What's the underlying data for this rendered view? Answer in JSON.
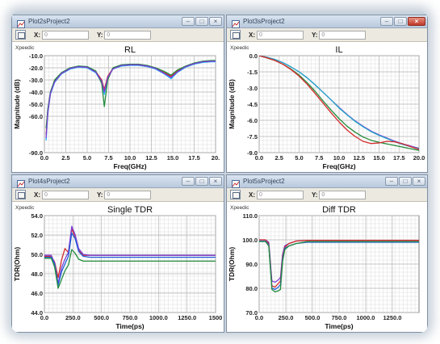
{
  "windows": [
    {
      "key": "rl",
      "title": "Plot2sProject2",
      "x_label": "X:",
      "x_value": "0",
      "y_label": "Y:",
      "y_value": "0",
      "brand": "Xpeedic",
      "active": false
    },
    {
      "key": "il",
      "title": "Plot3sProject2",
      "x_label": "X:",
      "x_value": "0",
      "y_label": "Y:",
      "y_value": "0",
      "brand": "Xpeedic",
      "active": true
    },
    {
      "key": "stdr",
      "title": "Plot4sProject2",
      "x_label": "X:",
      "x_value": "0",
      "y_label": "Y:",
      "y_value": "0",
      "brand": "Xpeedic",
      "active": false
    },
    {
      "key": "dtdr",
      "title": "Plot5sProject2",
      "x_label": "X:",
      "x_value": "0",
      "y_label": "Y:",
      "y_value": "0",
      "brand": "Xpeedic",
      "active": false
    }
  ],
  "chart_data": [
    {
      "type": "line",
      "title": "RL",
      "xlabel": "Freq(GHz)",
      "ylabel": "Magnitude (dB)",
      "xlim": [
        0,
        20
      ],
      "ylim": [
        -90,
        -10
      ],
      "xticks": [
        0,
        2.5,
        5,
        7.5,
        10,
        12.5,
        15,
        17.5,
        20
      ],
      "xtick_labels": [
        "0.0",
        "2.5",
        "5.0",
        "7.5",
        "10.0",
        "12.5",
        "15.0",
        "17.5",
        "20."
      ],
      "yticks": [
        -90,
        -60,
        -50,
        -40,
        -30,
        -20,
        -10
      ],
      "ytick_labels": [
        "-90.0",
        "-60.0",
        "-50.0",
        "-40.0",
        "-30.0",
        "-20.0",
        "-10.0"
      ],
      "grid": true,
      "series": [
        {
          "color": "#1fb5ff",
          "x": [
            0.2,
            0.4,
            0.7,
            1.2,
            2,
            3,
            4,
            5,
            6,
            6.7,
            7,
            7.4,
            8,
            9,
            10,
            11,
            12,
            13,
            14,
            14.8,
            15.5,
            16.5,
            17.5,
            18.5,
            19.5,
            20
          ],
          "y": [
            -80,
            -58,
            -42,
            -32,
            -25,
            -21,
            -19.5,
            -20,
            -24,
            -32,
            -42,
            -28,
            -21,
            -18.5,
            -18,
            -18,
            -19,
            -21,
            -25,
            -29,
            -24,
            -19.5,
            -17,
            -15.5,
            -15,
            -15
          ]
        },
        {
          "color": "#d42a2a",
          "x": [
            0.2,
            0.4,
            0.7,
            1.2,
            2,
            3,
            4,
            5,
            6,
            6.7,
            7,
            7.4,
            8,
            9,
            10,
            11,
            12,
            13,
            14,
            14.8,
            15.5,
            16.5,
            17.5,
            18.5,
            19.5,
            20
          ],
          "y": [
            -75,
            -56,
            -41,
            -31,
            -24.5,
            -20.5,
            -19,
            -19.5,
            -23,
            -30,
            -38,
            -27,
            -20.5,
            -18,
            -17.5,
            -17.5,
            -18.5,
            -20.5,
            -24,
            -27,
            -23,
            -19,
            -16.5,
            -15,
            -14.5,
            -14.5
          ]
        },
        {
          "color": "#228b3c",
          "x": [
            0.2,
            0.4,
            0.7,
            1.2,
            2,
            3,
            4,
            5,
            6,
            6.7,
            7,
            7.4,
            8,
            9,
            10,
            11,
            12,
            13,
            14,
            14.8,
            15.5,
            16.5,
            17.5,
            18.5,
            19.5,
            20
          ],
          "y": [
            -70,
            -54,
            -40,
            -30,
            -24,
            -20,
            -18.5,
            -19,
            -22.5,
            -33,
            -52,
            -30,
            -20,
            -17.5,
            -17,
            -17,
            -18,
            -20,
            -23,
            -26,
            -22,
            -18.5,
            -16,
            -14.5,
            -14,
            -14
          ]
        },
        {
          "color": "#7b3fd6",
          "x": [
            0.2,
            0.4,
            0.7,
            1.2,
            2,
            3,
            4,
            5,
            6,
            6.7,
            7,
            7.4,
            8,
            9,
            10,
            11,
            12,
            13,
            14,
            14.8,
            15.5,
            16.5,
            17.5,
            18.5,
            19.5,
            20
          ],
          "y": [
            -78,
            -57,
            -41,
            -31.5,
            -24.5,
            -20.5,
            -19,
            -19.5,
            -23.5,
            -31,
            -40,
            -28,
            -21,
            -18,
            -17.5,
            -17.5,
            -18.5,
            -20.5,
            -24.5,
            -28,
            -23.5,
            -19,
            -16.5,
            -15,
            -14.5,
            -14.5
          ]
        }
      ]
    },
    {
      "type": "line",
      "title": "IL",
      "xlabel": "Freq(GHz)",
      "ylabel": "Magnitude (dB)",
      "xlim": [
        0,
        20
      ],
      "ylim": [
        -9,
        0
      ],
      "xticks": [
        0,
        2.5,
        5,
        7.5,
        10,
        12.5,
        15,
        17.5,
        20
      ],
      "xtick_labels": [
        "0.0",
        "2.5",
        "5.0",
        "7.5",
        "10.0",
        "12.5",
        "15.0",
        "17.5",
        "20.0"
      ],
      "yticks": [
        0,
        -1.5,
        -3,
        -4.5,
        -6,
        -7.5,
        -9
      ],
      "ytick_labels": [
        "0.0",
        "-1.5",
        "-3.0",
        "-4.5",
        "-6.0",
        "-7.5",
        "-9.0"
      ],
      "grid": true,
      "series": [
        {
          "color": "#7b3fd6",
          "x": [
            0,
            1,
            2,
            3,
            4,
            5,
            6,
            7,
            8,
            9,
            10,
            11,
            12,
            13,
            14,
            15,
            16,
            17,
            18,
            19,
            20
          ],
          "y": [
            0,
            -0.15,
            -0.35,
            -0.65,
            -1.05,
            -1.5,
            -2.05,
            -2.7,
            -3.4,
            -4.1,
            -4.8,
            -5.45,
            -6.05,
            -6.55,
            -7,
            -7.35,
            -7.65,
            -7.95,
            -8.2,
            -8.4,
            -8.6
          ]
        },
        {
          "color": "#1fa8c8",
          "x": [
            0,
            1,
            2,
            3,
            4,
            5,
            6,
            7,
            8,
            9,
            10,
            11,
            12,
            13,
            14,
            15,
            16,
            17,
            18,
            19,
            20
          ],
          "y": [
            0,
            -0.15,
            -0.35,
            -0.65,
            -1.05,
            -1.5,
            -2.05,
            -2.7,
            -3.4,
            -4.1,
            -4.85,
            -5.5,
            -6.1,
            -6.6,
            -7.05,
            -7.4,
            -7.7,
            -8,
            -8.25,
            -8.45,
            -8.65
          ]
        },
        {
          "color": "#228b3c",
          "x": [
            0,
            1,
            2,
            3,
            4,
            5,
            6,
            7,
            8,
            9,
            10,
            11,
            12,
            13,
            14,
            15,
            16,
            17,
            18,
            19,
            20
          ],
          "y": [
            0,
            -0.2,
            -0.45,
            -0.8,
            -1.25,
            -1.8,
            -2.5,
            -3.3,
            -4.2,
            -5.05,
            -5.85,
            -6.55,
            -7.1,
            -7.55,
            -7.85,
            -8.05,
            -8.2,
            -8.35,
            -8.5,
            -8.65,
            -8.8
          ]
        },
        {
          "color": "#d42a2a",
          "x": [
            0,
            1,
            2,
            3,
            4,
            5,
            6,
            7,
            8,
            9,
            10,
            11,
            12,
            13,
            14,
            15,
            16,
            17,
            18,
            19,
            20
          ],
          "y": [
            0,
            -0.2,
            -0.45,
            -0.8,
            -1.3,
            -1.9,
            -2.65,
            -3.5,
            -4.4,
            -5.3,
            -6.15,
            -6.9,
            -7.5,
            -7.95,
            -8.15,
            -8.1,
            -7.95,
            -8,
            -8.2,
            -8.45,
            -8.7
          ]
        }
      ]
    },
    {
      "type": "line",
      "title": "Single TDR",
      "xlabel": "Time(ps)",
      "ylabel": "TDR(Ohm)",
      "xlim": [
        0,
        1500
      ],
      "ylim": [
        44,
        54
      ],
      "xticks": [
        0,
        250,
        500,
        750,
        1000,
        1250,
        1500
      ],
      "xtick_labels": [
        "0.0",
        "250.0",
        "500.0",
        "750.0",
        "1000.0",
        "1250.0",
        "1500"
      ],
      "yticks": [
        44,
        46,
        48,
        50,
        52,
        54
      ],
      "ytick_labels": [
        "44.0",
        "46.0",
        "48.0",
        "50.0",
        "52.0",
        "54.0"
      ],
      "grid": true,
      "series": [
        {
          "color": "#d42a2a",
          "x": [
            0,
            60,
            90,
            120,
            150,
            180,
            210,
            240,
            270,
            300,
            340,
            400,
            500,
            700,
            1000,
            1500
          ],
          "y": [
            49.8,
            49.8,
            49.2,
            47.6,
            49.4,
            50.6,
            50.2,
            52.6,
            51.8,
            50.4,
            49.9,
            49.9,
            49.9,
            49.9,
            49.9,
            49.9
          ]
        },
        {
          "color": "#7b3fd6",
          "x": [
            0,
            60,
            90,
            120,
            150,
            180,
            210,
            240,
            270,
            300,
            340,
            400,
            500,
            700,
            1000,
            1500
          ],
          "y": [
            49.9,
            49.9,
            49.1,
            47.0,
            48.6,
            49.5,
            50.2,
            52.9,
            52.0,
            50.6,
            50.0,
            49.9,
            49.9,
            49.9,
            49.9,
            49.9
          ]
        },
        {
          "color": "#1f5fd8",
          "x": [
            0,
            60,
            90,
            120,
            150,
            180,
            210,
            240,
            270,
            300,
            340,
            400,
            500,
            700,
            1000,
            1500
          ],
          "y": [
            49.7,
            49.7,
            49.0,
            46.8,
            48.2,
            49.0,
            49.8,
            52.2,
            51.6,
            50.3,
            49.8,
            49.7,
            49.7,
            49.7,
            49.7,
            49.7
          ]
        },
        {
          "color": "#228b3c",
          "x": [
            0,
            60,
            90,
            120,
            150,
            180,
            210,
            240,
            270,
            300,
            340,
            400,
            500,
            700,
            1000,
            1500
          ],
          "y": [
            49.6,
            49.6,
            48.7,
            46.5,
            47.4,
            48.3,
            48.9,
            50.5,
            50.1,
            49.5,
            49.3,
            49.3,
            49.3,
            49.3,
            49.3,
            49.3
          ]
        }
      ]
    },
    {
      "type": "line",
      "title": "Diff TDR",
      "xlabel": "Time(ps)",
      "ylabel": "TDR(Ohm)",
      "xlim": [
        0,
        1500
      ],
      "ylim": [
        70,
        110
      ],
      "xticks": [
        0,
        250,
        500,
        750,
        1000,
        1250
      ],
      "xtick_labels": [
        "0.0",
        "250.0",
        "500.0",
        "750.0",
        "1000.0",
        "1250.0"
      ],
      "yticks": [
        70,
        80,
        90,
        100,
        110
      ],
      "ytick_labels": [
        "70.0",
        "80.0",
        "90.0",
        "100.0",
        "110.0"
      ],
      "grid": true,
      "series": [
        {
          "color": "#7b3fd6",
          "x": [
            0,
            60,
            90,
            120,
            150,
            180,
            200,
            220,
            240,
            280,
            350,
            450,
            600,
            1000,
            1500
          ],
          "y": [
            100,
            100,
            99,
            83,
            82.5,
            83.5,
            84.5,
            94,
            97.5,
            98.5,
            99.5,
            99.8,
            99.8,
            99.8,
            99.8
          ]
        },
        {
          "color": "#d42a2a",
          "x": [
            0,
            60,
            90,
            120,
            150,
            180,
            200,
            220,
            240,
            280,
            350,
            450,
            600,
            1000,
            1500
          ],
          "y": [
            100,
            100,
            98.5,
            81,
            80.5,
            82,
            83,
            93,
            97,
            98.5,
            99.5,
            99.8,
            99.8,
            99.8,
            99.8
          ]
        },
        {
          "color": "#1f5fd8",
          "x": [
            0,
            60,
            90,
            120,
            150,
            180,
            200,
            220,
            240,
            280,
            350,
            450,
            600,
            1000,
            1500
          ],
          "y": [
            99.5,
            99.5,
            98,
            80,
            79.5,
            80.5,
            81.5,
            92,
            96.5,
            97.5,
            98.5,
            99,
            99,
            99,
            99
          ]
        },
        {
          "color": "#228b3c",
          "x": [
            0,
            60,
            90,
            120,
            150,
            180,
            200,
            220,
            240,
            280,
            350,
            450,
            600,
            1000,
            1500
          ],
          "y": [
            99.3,
            99.3,
            97.5,
            79.5,
            78.5,
            79,
            79.5,
            91,
            96,
            97.5,
            98.5,
            99.3,
            99.3,
            99.3,
            99.3
          ]
        }
      ]
    }
  ]
}
